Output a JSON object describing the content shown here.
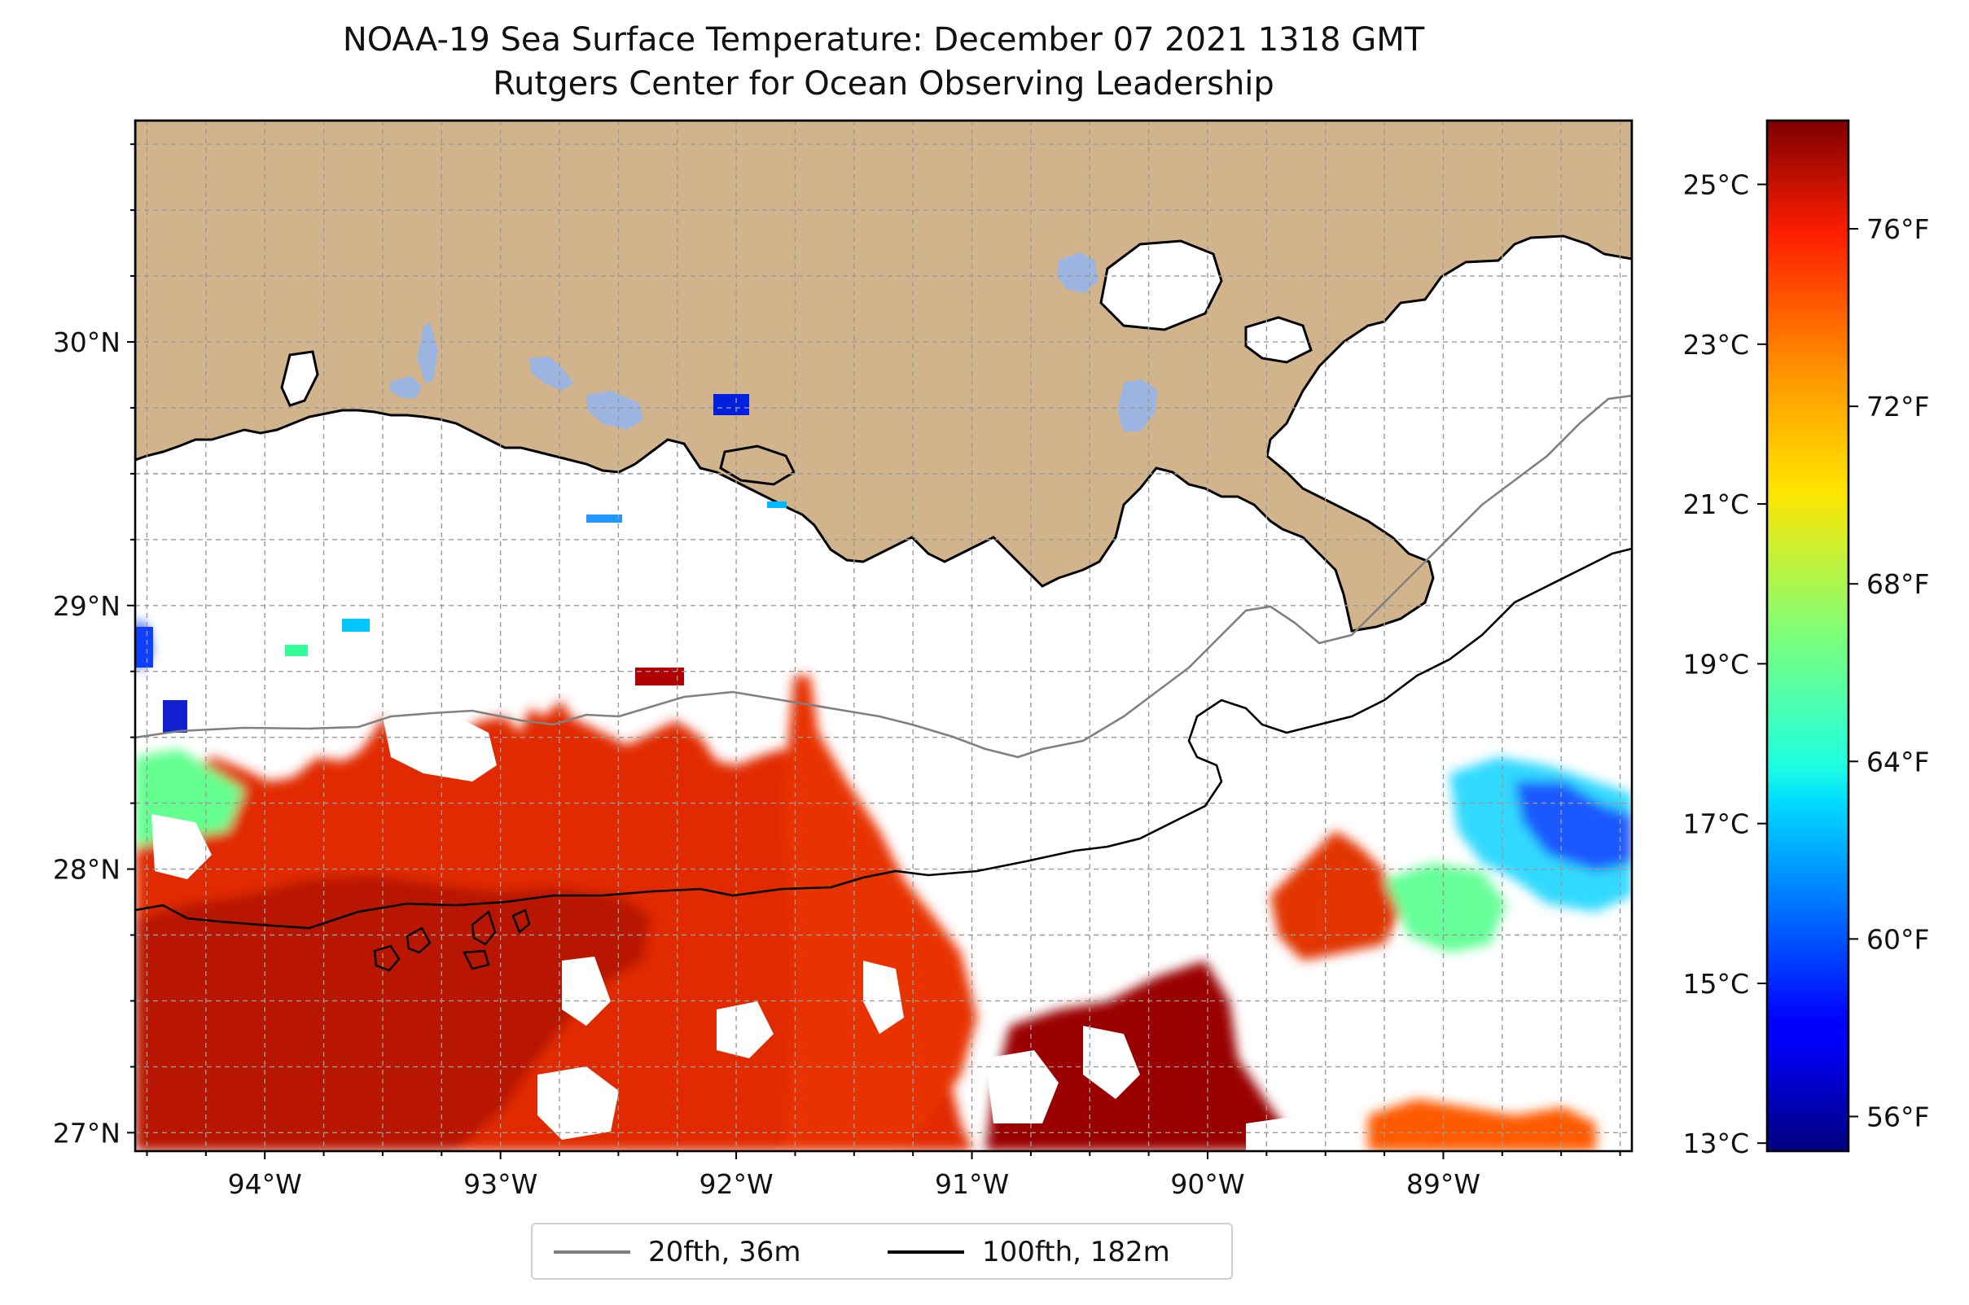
{
  "header": {
    "title": "NOAA-19 Sea Surface Temperature: December 07 2021 1318 GMT",
    "subtitle": "Rutgers Center for Ocean Observing Leadership"
  },
  "map": {
    "lon_range": [
      -94.55,
      -88.2
    ],
    "lat_range": [
      26.93,
      30.84
    ],
    "lat_ticks": [
      {
        "value": 30,
        "label": "30°N"
      },
      {
        "value": 29,
        "label": "29°N"
      },
      {
        "value": 28,
        "label": "28°N"
      },
      {
        "value": 27,
        "label": "27°N"
      }
    ],
    "lon_ticks": [
      {
        "value": -94,
        "label": "94°W"
      },
      {
        "value": -93,
        "label": "93°W"
      },
      {
        "value": -92,
        "label": "92°W"
      },
      {
        "value": -91,
        "label": "91°W"
      },
      {
        "value": -90,
        "label": "90°W"
      },
      {
        "value": -89,
        "label": "89°W"
      }
    ],
    "gridlines": "dashed every 0.25°",
    "colors": {
      "land": "#d2b48c",
      "lakes": "#9bb5e0",
      "ocean": "#ffffff",
      "coast": "#000000"
    }
  },
  "colorbar": {
    "colormap": "jet",
    "celsius_range": [
      12.9,
      25.8
    ],
    "celsius_ticks": [
      {
        "value": 25,
        "label": "25°C"
      },
      {
        "value": 23,
        "label": "23°C"
      },
      {
        "value": 21,
        "label": "21°C"
      },
      {
        "value": 19,
        "label": "19°C"
      },
      {
        "value": 17,
        "label": "17°C"
      },
      {
        "value": 15,
        "label": "15°C"
      },
      {
        "value": 13,
        "label": "13°C"
      }
    ],
    "fahrenheit_ticks": [
      {
        "value": 76,
        "label": "76°F"
      },
      {
        "value": 72,
        "label": "72°F"
      },
      {
        "value": 68,
        "label": "68°F"
      },
      {
        "value": 64,
        "label": "64°F"
      },
      {
        "value": 60,
        "label": "60°F"
      },
      {
        "value": 56,
        "label": "56°F"
      }
    ]
  },
  "legend": {
    "entries": [
      {
        "label": "20fth, 36m",
        "color": "#808080"
      },
      {
        "label": "100fth, 182m",
        "color": "#000000"
      }
    ]
  }
}
